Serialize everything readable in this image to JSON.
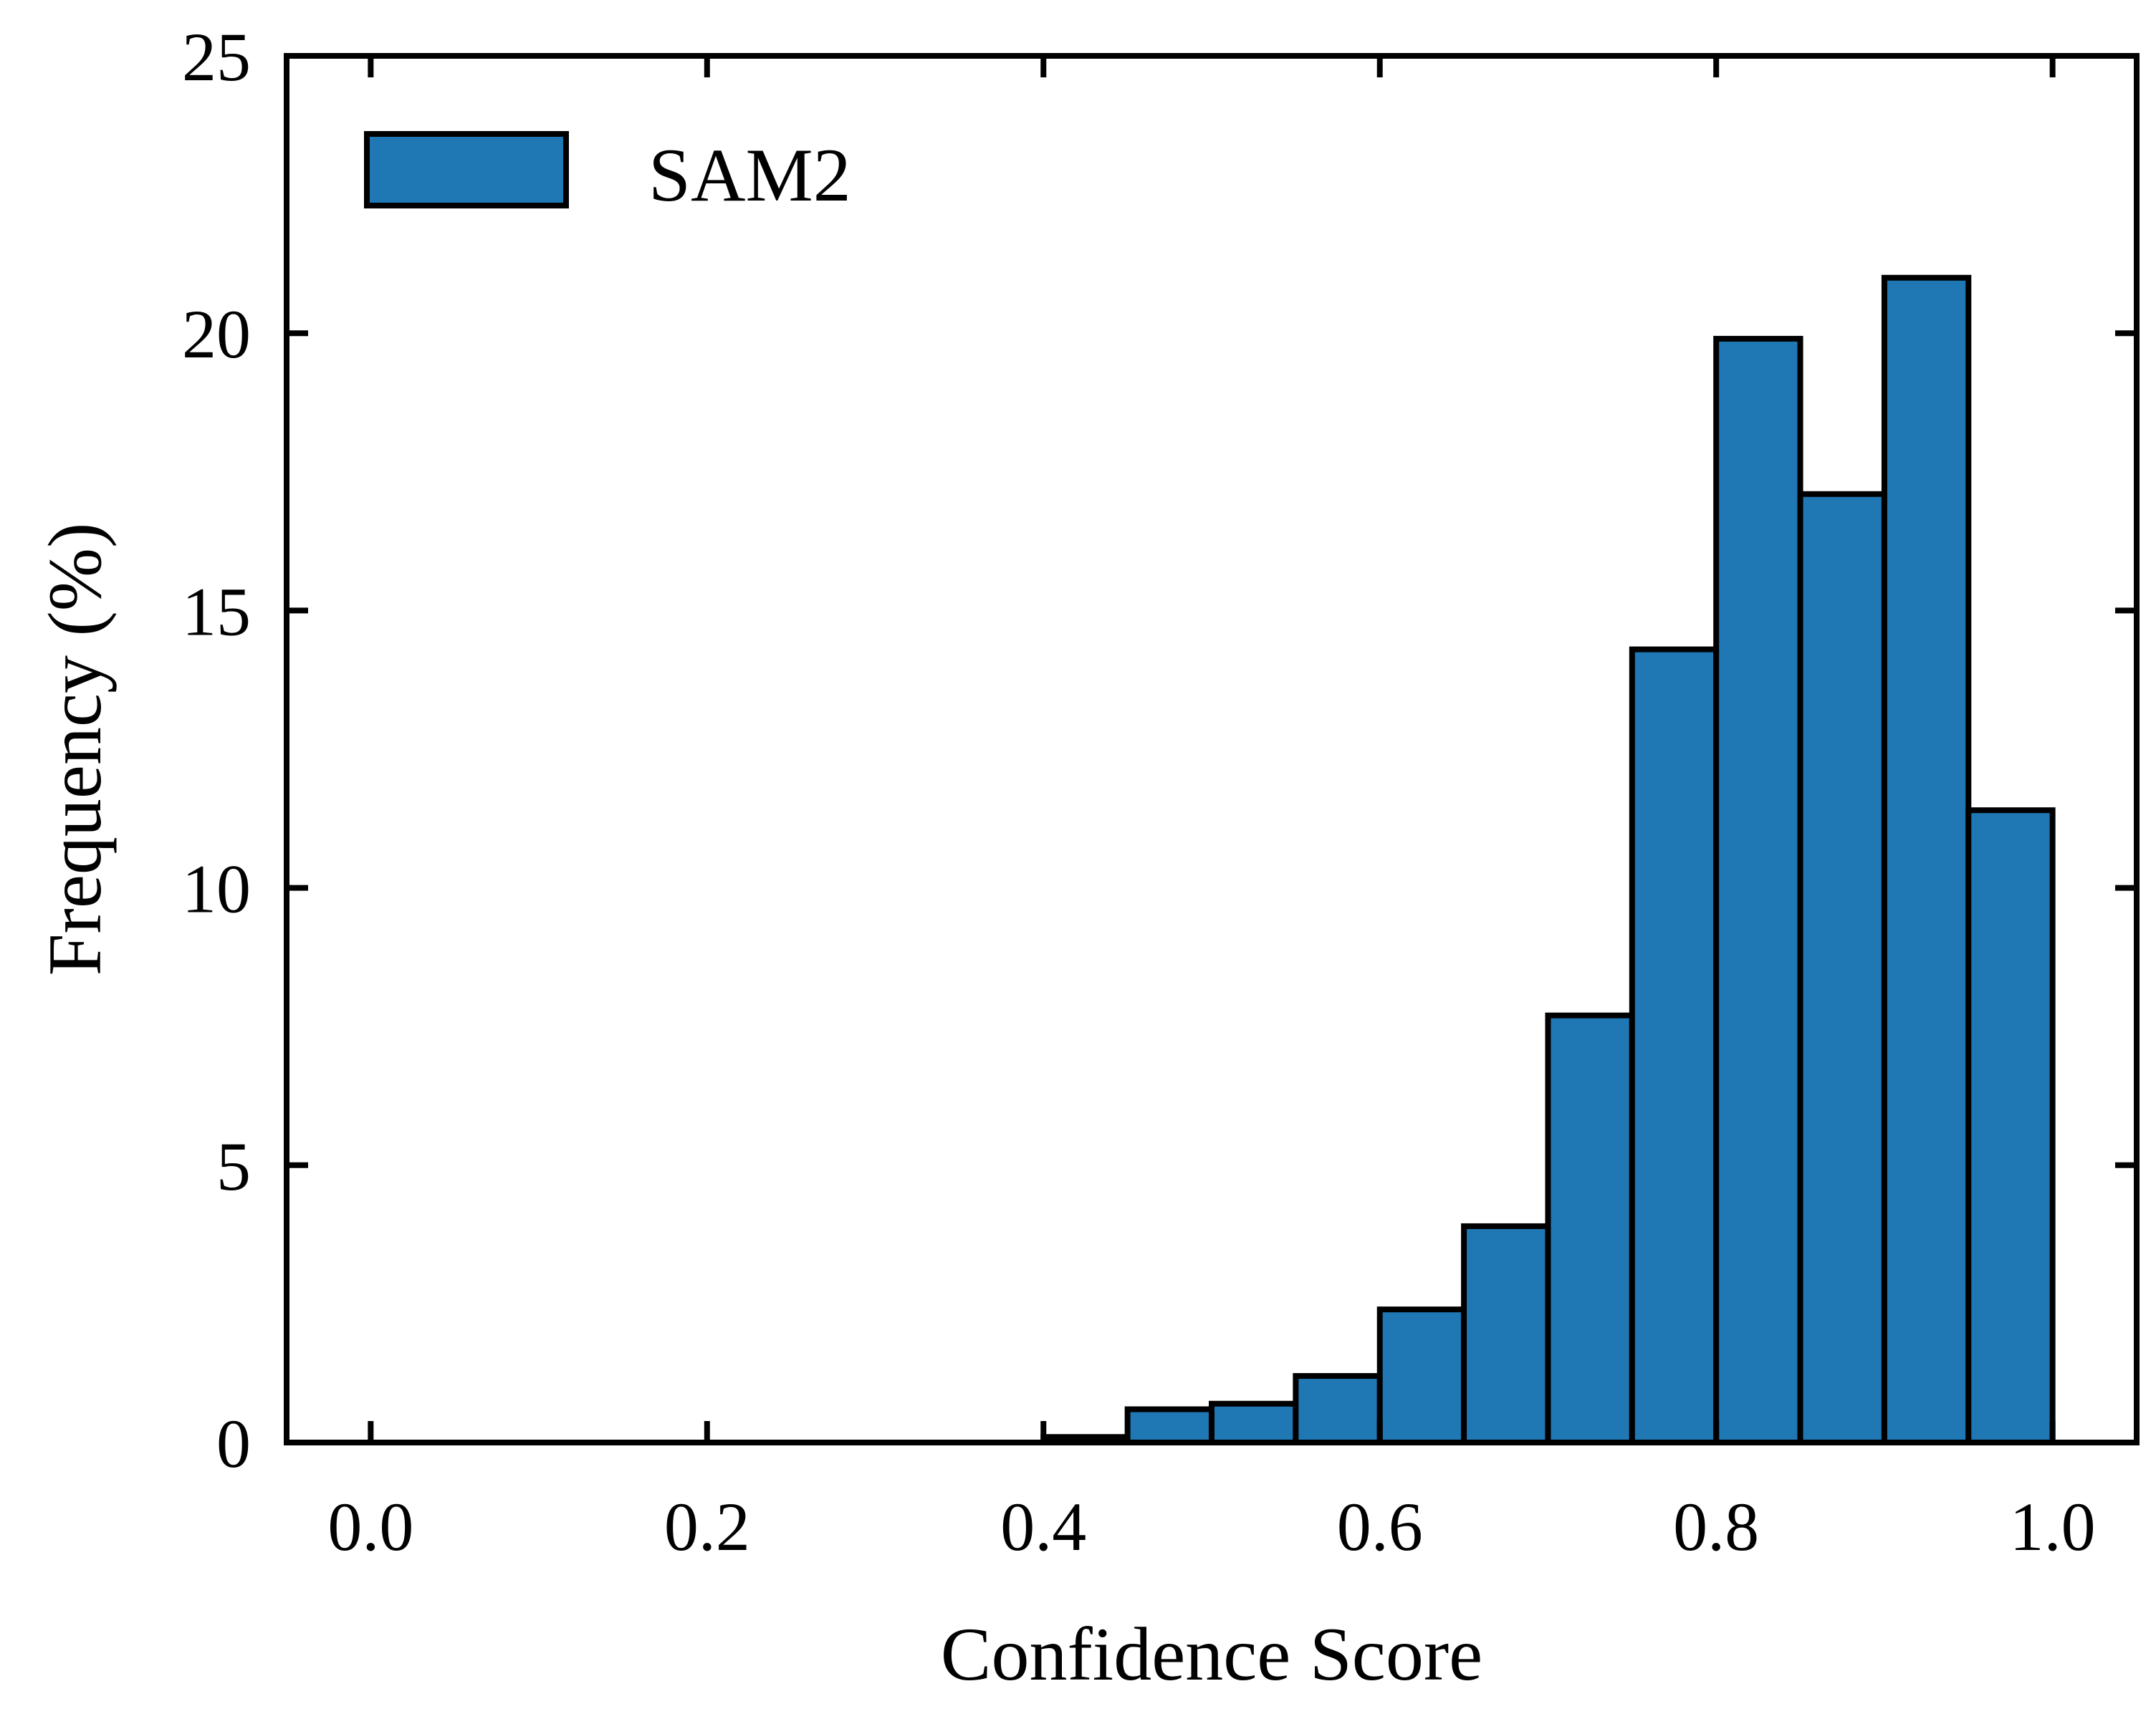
{
  "chart_data": {
    "type": "bar",
    "bin_edges": [
      0.0,
      0.05,
      0.1,
      0.15,
      0.2,
      0.25,
      0.3,
      0.35,
      0.4,
      0.45,
      0.5,
      0.55,
      0.6,
      0.65,
      0.7,
      0.75,
      0.8,
      0.85,
      0.9,
      0.95,
      1.0
    ],
    "series": [
      {
        "name": "SAM2",
        "values": [
          0,
          0,
          0,
          0,
          0,
          0,
          0,
          0,
          0.1,
          0.6,
          0.7,
          1.2,
          2.4,
          3.9,
          7.7,
          14.3,
          19.9,
          17.1,
          21.0,
          11.4
        ],
        "color": "#1f77b4"
      }
    ],
    "xlabel": "Confidence Score",
    "ylabel": "Frequency (%)",
    "xlim": [
      -0.05,
      1.05
    ],
    "ylim": [
      0,
      25
    ],
    "xticks": [
      0.0,
      0.2,
      0.4,
      0.6,
      0.8,
      1.0
    ],
    "xtick_labels": [
      "0.0",
      "0.2",
      "0.4",
      "0.6",
      "0.8",
      "1.0"
    ],
    "yticks": [
      0,
      5,
      10,
      15,
      20,
      25
    ],
    "ytick_labels": [
      "0",
      "5",
      "10",
      "15",
      "20",
      "25"
    ],
    "grid": false,
    "legend_position": "top-left",
    "edge_color": "#000000"
  }
}
